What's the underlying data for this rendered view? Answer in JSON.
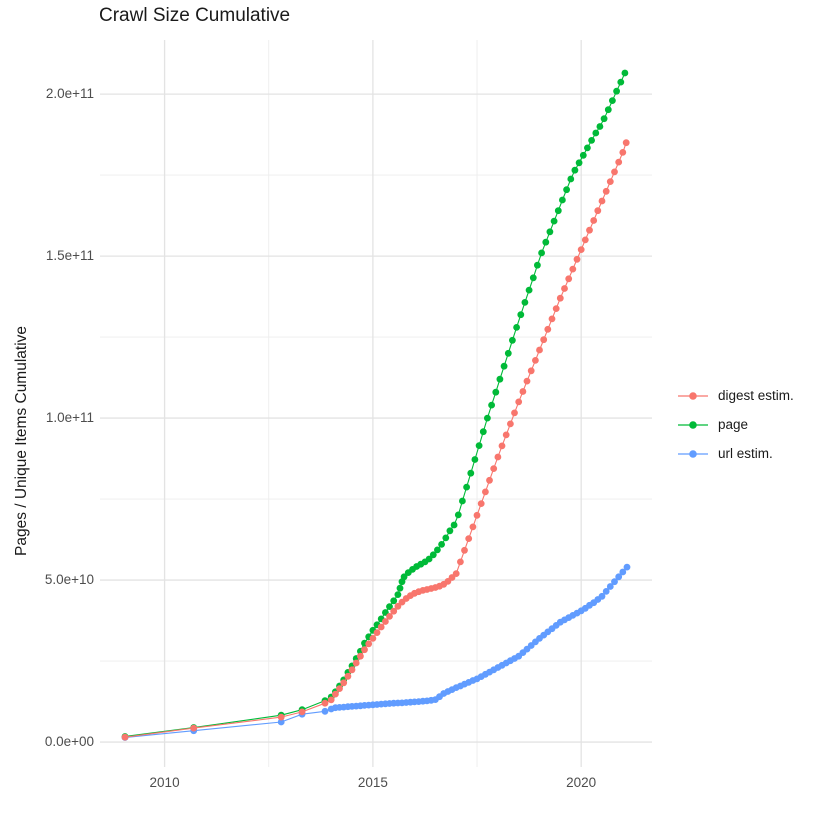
{
  "title": "Crawl Size Cumulative",
  "colors": {
    "background": "#FFFFFF",
    "grid_major": "#E3E3E3",
    "grid_minor": "#EDEDED",
    "tick_text": "#4D4D4D",
    "text": "#1A1A1A",
    "digest": "#F8766D",
    "page": "#00BA38",
    "url": "#619CFF"
  },
  "chart_data": {
    "type": "scatter",
    "title": "Crawl Size Cumulative",
    "xlabel": "",
    "ylabel": "Pages / Unique Items Cumulative",
    "value_unit": "1e9 items",
    "grid": "on",
    "legend_position": "right",
    "x_domain": [
      2008.45,
      2021.7
    ],
    "y_domain_e9": [
      -7.7,
      216.7
    ],
    "x_ticks": [
      {
        "v": 2010,
        "label": "2010"
      },
      {
        "v": 2015,
        "label": "2015"
      },
      {
        "v": 2020,
        "label": "2020"
      }
    ],
    "x_minor": [
      2012.5,
      2017.5
    ],
    "y_ticks": [
      {
        "v": 0,
        "label": "0.0e+00"
      },
      {
        "v": 50,
        "label": "5.0e+10"
      },
      {
        "v": 100,
        "label": "1.0e+11"
      },
      {
        "v": 150,
        "label": "1.5e+11"
      },
      {
        "v": 200,
        "label": "2.0e+11"
      }
    ],
    "y_minor": [
      25,
      75,
      125,
      175
    ],
    "series": [
      {
        "name": "digest estim.",
        "color": "#F8766D",
        "z": 3,
        "points": [
          [
            2009.05,
            1.5
          ],
          [
            2010.7,
            4.3
          ],
          [
            2012.8,
            7.7
          ],
          [
            2013.3,
            9.3
          ],
          [
            2013.85,
            12.0
          ],
          [
            2014.0,
            13.0
          ],
          [
            2014.1,
            14.8
          ],
          [
            2014.2,
            16.5
          ],
          [
            2014.3,
            18.3
          ],
          [
            2014.4,
            20.3
          ],
          [
            2014.5,
            22.3
          ],
          [
            2014.6,
            24.4
          ],
          [
            2014.7,
            26.5
          ],
          [
            2014.8,
            28.5
          ],
          [
            2014.9,
            30.3
          ],
          [
            2015.0,
            32.0
          ],
          [
            2015.1,
            33.8
          ],
          [
            2015.2,
            35.5
          ],
          [
            2015.3,
            37.2
          ],
          [
            2015.4,
            38.8
          ],
          [
            2015.5,
            40.4
          ],
          [
            2015.6,
            41.9
          ],
          [
            2015.7,
            43.2
          ],
          [
            2015.8,
            44.3
          ],
          [
            2015.9,
            45.2
          ],
          [
            2016.0,
            45.9
          ],
          [
            2016.1,
            46.4
          ],
          [
            2016.2,
            46.8
          ],
          [
            2016.3,
            47.1
          ],
          [
            2016.4,
            47.4
          ],
          [
            2016.5,
            47.7
          ],
          [
            2016.6,
            48.1
          ],
          [
            2016.7,
            48.7
          ],
          [
            2016.8,
            49.6
          ],
          [
            2016.9,
            50.8
          ],
          [
            2017.0,
            52.0
          ],
          [
            2017.1,
            55.6
          ],
          [
            2017.2,
            59.2
          ],
          [
            2017.3,
            62.8
          ],
          [
            2017.4,
            66.4
          ],
          [
            2017.5,
            70.0
          ],
          [
            2017.6,
            73.6
          ],
          [
            2017.7,
            77.2
          ],
          [
            2017.8,
            80.8
          ],
          [
            2017.9,
            84.4
          ],
          [
            2018.0,
            88.0
          ],
          [
            2018.1,
            91.4
          ],
          [
            2018.2,
            94.8
          ],
          [
            2018.3,
            98.2
          ],
          [
            2018.4,
            101.6
          ],
          [
            2018.5,
            105.0
          ],
          [
            2018.6,
            108.2
          ],
          [
            2018.7,
            111.4
          ],
          [
            2018.8,
            114.6
          ],
          [
            2018.9,
            117.8
          ],
          [
            2019.0,
            121.0
          ],
          [
            2019.1,
            124.2
          ],
          [
            2019.2,
            127.4
          ],
          [
            2019.3,
            130.6
          ],
          [
            2019.4,
            133.8
          ],
          [
            2019.5,
            137.0
          ],
          [
            2019.6,
            140.0
          ],
          [
            2019.7,
            143.0
          ],
          [
            2019.8,
            146.0
          ],
          [
            2019.9,
            149.0
          ],
          [
            2020.0,
            152.0
          ],
          [
            2020.1,
            155.0
          ],
          [
            2020.2,
            158.0
          ],
          [
            2020.3,
            161.0
          ],
          [
            2020.4,
            164.0
          ],
          [
            2020.5,
            167.0
          ],
          [
            2020.6,
            170.0
          ],
          [
            2020.7,
            173.0
          ],
          [
            2020.8,
            176.0
          ],
          [
            2020.9,
            179.0
          ],
          [
            2021.0,
            182.0
          ],
          [
            2021.08,
            185.0
          ]
        ]
      },
      {
        "name": "page",
        "color": "#00BA38",
        "z": 1,
        "points": [
          [
            2009.05,
            1.7
          ],
          [
            2010.7,
            4.5
          ],
          [
            2012.8,
            8.3
          ],
          [
            2013.3,
            10.0
          ],
          [
            2013.85,
            12.8
          ],
          [
            2014.0,
            13.9
          ],
          [
            2014.1,
            15.5
          ],
          [
            2014.2,
            17.3
          ],
          [
            2014.3,
            19.2
          ],
          [
            2014.4,
            21.5
          ],
          [
            2014.5,
            23.5
          ],
          [
            2014.6,
            25.8
          ],
          [
            2014.7,
            28.0
          ],
          [
            2014.8,
            30.5
          ],
          [
            2014.9,
            32.5
          ],
          [
            2015.0,
            34.5
          ],
          [
            2015.1,
            36.2
          ],
          [
            2015.2,
            38.0
          ],
          [
            2015.3,
            40.0
          ],
          [
            2015.4,
            41.8
          ],
          [
            2015.5,
            43.6
          ],
          [
            2015.6,
            45.5
          ],
          [
            2015.65,
            47.5
          ],
          [
            2015.7,
            49.5
          ],
          [
            2015.75,
            51.0
          ],
          [
            2015.85,
            52.3
          ],
          [
            2015.95,
            53.3
          ],
          [
            2016.05,
            54.2
          ],
          [
            2016.15,
            54.9
          ],
          [
            2016.25,
            55.6
          ],
          [
            2016.35,
            56.5
          ],
          [
            2016.45,
            57.8
          ],
          [
            2016.55,
            59.3
          ],
          [
            2016.65,
            61.0
          ],
          [
            2016.75,
            63.0
          ],
          [
            2016.85,
            65.2
          ],
          [
            2016.95,
            67.0
          ],
          [
            2017.05,
            70.1
          ],
          [
            2017.15,
            74.4
          ],
          [
            2017.25,
            78.7
          ],
          [
            2017.35,
            83.0
          ],
          [
            2017.45,
            87.2
          ],
          [
            2017.55,
            91.5
          ],
          [
            2017.65,
            95.8
          ],
          [
            2017.75,
            100.0
          ],
          [
            2017.85,
            104.0
          ],
          [
            2017.95,
            108.0
          ],
          [
            2018.05,
            112.0
          ],
          [
            2018.15,
            116.0
          ],
          [
            2018.25,
            120.0
          ],
          [
            2018.35,
            124.0
          ],
          [
            2018.45,
            128.0
          ],
          [
            2018.55,
            131.9
          ],
          [
            2018.65,
            135.7
          ],
          [
            2018.75,
            139.5
          ],
          [
            2018.85,
            143.3
          ],
          [
            2018.95,
            147.2
          ],
          [
            2019.05,
            151.0
          ],
          [
            2019.15,
            154.3
          ],
          [
            2019.25,
            157.5
          ],
          [
            2019.35,
            160.8
          ],
          [
            2019.45,
            164.0
          ],
          [
            2019.55,
            167.3
          ],
          [
            2019.65,
            170.5
          ],
          [
            2019.75,
            173.8
          ],
          [
            2019.85,
            176.5
          ],
          [
            2019.95,
            178.8
          ],
          [
            2020.05,
            181.1
          ],
          [
            2020.15,
            183.4
          ],
          [
            2020.25,
            185.7
          ],
          [
            2020.35,
            188.0
          ],
          [
            2020.45,
            190.0
          ],
          [
            2020.55,
            192.4
          ],
          [
            2020.65,
            195.2
          ],
          [
            2020.75,
            198.0
          ],
          [
            2020.85,
            200.9
          ],
          [
            2020.95,
            203.7
          ],
          [
            2021.05,
            206.5
          ]
        ]
      },
      {
        "name": "url estim.",
        "color": "#619CFF",
        "z": 2,
        "points": [
          [
            2009.05,
            1.4
          ],
          [
            2010.7,
            3.5
          ],
          [
            2012.8,
            6.2
          ],
          [
            2013.3,
            8.6
          ],
          [
            2013.85,
            9.5
          ],
          [
            2014.0,
            10.2
          ],
          [
            2014.1,
            10.6
          ],
          [
            2014.2,
            10.7
          ],
          [
            2014.3,
            10.8
          ],
          [
            2014.4,
            10.9
          ],
          [
            2014.5,
            11.0
          ],
          [
            2014.6,
            11.1
          ],
          [
            2014.7,
            11.2
          ],
          [
            2014.8,
            11.3
          ],
          [
            2014.9,
            11.4
          ],
          [
            2015.0,
            11.5
          ],
          [
            2015.1,
            11.6
          ],
          [
            2015.2,
            11.7
          ],
          [
            2015.3,
            11.8
          ],
          [
            2015.4,
            11.9
          ],
          [
            2015.5,
            12.0
          ],
          [
            2015.6,
            12.05
          ],
          [
            2015.7,
            12.1
          ],
          [
            2015.8,
            12.2
          ],
          [
            2015.9,
            12.3
          ],
          [
            2016.0,
            12.4
          ],
          [
            2016.1,
            12.5
          ],
          [
            2016.2,
            12.6
          ],
          [
            2016.3,
            12.7
          ],
          [
            2016.4,
            12.9
          ],
          [
            2016.5,
            13.1
          ],
          [
            2016.6,
            14.0
          ],
          [
            2016.7,
            15.0
          ],
          [
            2016.8,
            15.6
          ],
          [
            2016.9,
            16.2
          ],
          [
            2017.0,
            16.8
          ],
          [
            2017.1,
            17.3
          ],
          [
            2017.2,
            17.9
          ],
          [
            2017.3,
            18.4
          ],
          [
            2017.4,
            19.0
          ],
          [
            2017.5,
            19.5
          ],
          [
            2017.6,
            20.2
          ],
          [
            2017.7,
            20.9
          ],
          [
            2017.8,
            21.6
          ],
          [
            2017.9,
            22.3
          ],
          [
            2018.0,
            23.0
          ],
          [
            2018.1,
            23.7
          ],
          [
            2018.2,
            24.4
          ],
          [
            2018.3,
            25.1
          ],
          [
            2018.4,
            25.8
          ],
          [
            2018.5,
            26.5
          ],
          [
            2018.6,
            27.6
          ],
          [
            2018.7,
            28.7
          ],
          [
            2018.8,
            29.8
          ],
          [
            2018.9,
            30.9
          ],
          [
            2019.0,
            32.0
          ],
          [
            2019.1,
            33.0
          ],
          [
            2019.2,
            34.0
          ],
          [
            2019.3,
            35.0
          ],
          [
            2019.4,
            36.0
          ],
          [
            2019.5,
            37.0
          ],
          [
            2019.6,
            37.7
          ],
          [
            2019.7,
            38.4
          ],
          [
            2019.8,
            39.1
          ],
          [
            2019.9,
            39.8
          ],
          [
            2020.0,
            40.5
          ],
          [
            2020.1,
            41.3
          ],
          [
            2020.2,
            42.2
          ],
          [
            2020.3,
            43.0
          ],
          [
            2020.4,
            44.0
          ],
          [
            2020.5,
            45.0
          ],
          [
            2020.6,
            46.5
          ],
          [
            2020.7,
            48.0
          ],
          [
            2020.8,
            49.5
          ],
          [
            2020.9,
            51.0
          ],
          [
            2021.0,
            52.5
          ],
          [
            2021.1,
            54.0
          ]
        ]
      }
    ]
  }
}
